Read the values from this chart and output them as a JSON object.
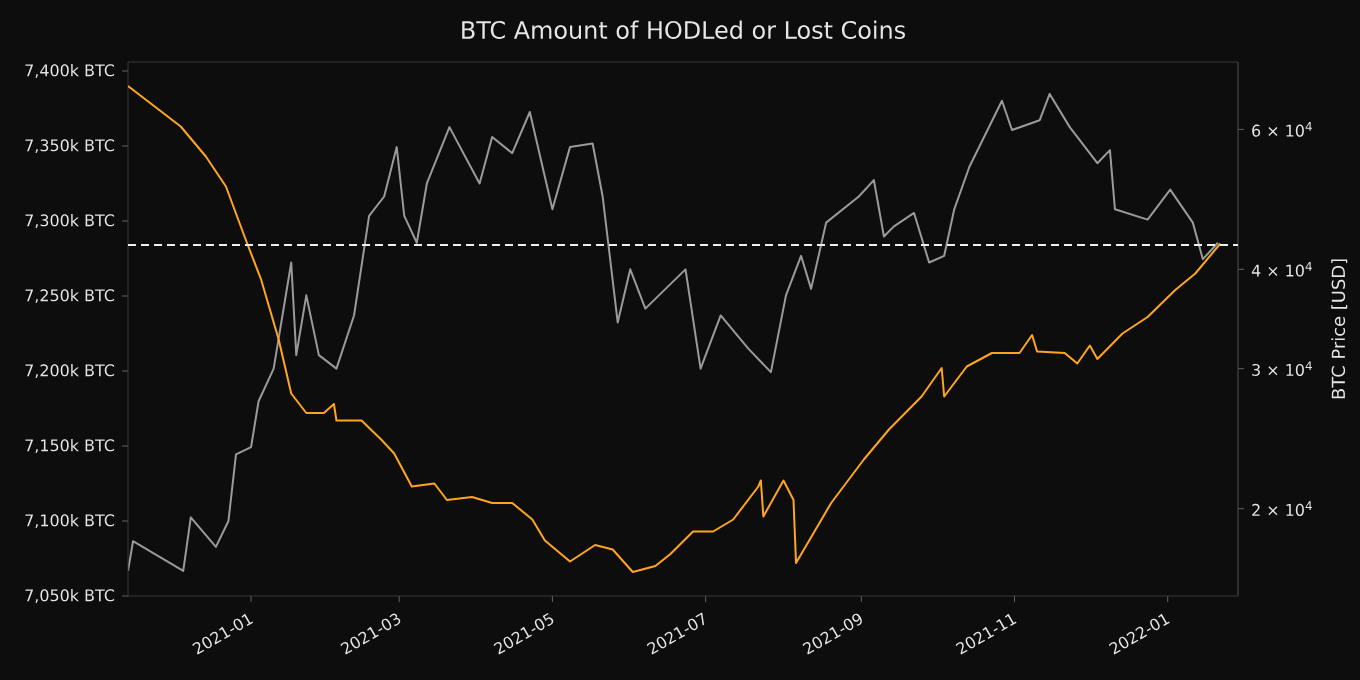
{
  "chart_data": {
    "type": "line",
    "title": "BTC Amount of HODLed or Lost Coins",
    "y2label": "BTC Price [USD]",
    "log": "y2",
    "xlim": [
      "2020-11-13",
      "2022-01-29"
    ],
    "xticks": [
      "2021-01",
      "2021-03",
      "2021-05",
      "2021-07",
      "2021-09",
      "2021-11",
      "2022-01"
    ],
    "ylim": [
      7050,
      7406
    ],
    "yticks": [
      {
        "value": 7050,
        "label": "7,050k BTC"
      },
      {
        "value": 7100,
        "label": "7,100k BTC"
      },
      {
        "value": 7150,
        "label": "7,150k BTC"
      },
      {
        "value": 7200,
        "label": "7,200k BTC"
      },
      {
        "value": 7250,
        "label": "7,250k BTC"
      },
      {
        "value": 7300,
        "label": "7,300k BTC"
      },
      {
        "value": 7350,
        "label": "7,350k BTC"
      },
      {
        "value": 7400,
        "label": "7,400k BTC"
      }
    ],
    "y2lim": [
      15530,
      72950
    ],
    "y2ticks": [
      {
        "value": 20000,
        "label": "2 × 10$^{4}$"
      },
      {
        "value": 30000,
        "label": "3 × 10$^{4}$"
      },
      {
        "value": 40000,
        "label": "4 × 10$^{4}$"
      },
      {
        "value": 60000,
        "label": "6 × 10$^{4}$"
      }
    ],
    "ref_lines": [
      {
        "axis": "y",
        "value": 7284,
        "color": "#eeeeee",
        "line_style": "dashed"
      }
    ],
    "series": [
      {
        "color": "#9a9a9a",
        "axis": "y2",
        "x": [
          "2020-11-13",
          "2020-11-15",
          "2020-12-05",
          "2020-12-08",
          "2020-12-18",
          "2020-12-23",
          "2020-12-26",
          "2021-01-01",
          "2021-01-04",
          "2021-01-10",
          "2021-01-17",
          "2021-01-19",
          "2021-01-23",
          "2021-01-28",
          "2021-02-04",
          "2021-02-11",
          "2021-02-17",
          "2021-02-23",
          "2021-02-28",
          "2021-03-03",
          "2021-03-08",
          "2021-03-12",
          "2021-03-21",
          "2021-04-02",
          "2021-04-07",
          "2021-04-15",
          "2021-04-22",
          "2021-05-01",
          "2021-05-08",
          "2021-05-17",
          "2021-05-21",
          "2021-05-27",
          "2021-06-01",
          "2021-06-07",
          "2021-06-23",
          "2021-06-29",
          "2021-07-07",
          "2021-07-18",
          "2021-07-27",
          "2021-08-02",
          "2021-08-08",
          "2021-08-12",
          "2021-08-18",
          "2021-08-31",
          "2021-09-06",
          "2021-09-10",
          "2021-09-14",
          "2021-09-22",
          "2021-09-28",
          "2021-10-04",
          "2021-10-08",
          "2021-10-14",
          "2021-10-27",
          "2021-10-31",
          "2021-11-11",
          "2021-11-15",
          "2021-11-23",
          "2021-12-04",
          "2021-12-09",
          "2021-12-11",
          "2021-12-24",
          "2022-01-02",
          "2022-01-11",
          "2022-01-15",
          "2022-01-21"
        ],
        "values": [
          16700,
          18200,
          16700,
          19500,
          17900,
          19300,
          23400,
          23900,
          27300,
          30000,
          40800,
          31200,
          37100,
          31200,
          30000,
          35000,
          46700,
          49400,
          57000,
          46700,
          43200,
          51300,
          60400,
          51300,
          58700,
          56000,
          63100,
          47600,
          57000,
          57600,
          49400,
          34300,
          40000,
          35700,
          40000,
          30000,
          35000,
          31800,
          29700,
          37100,
          41600,
          37800,
          45800,
          49400,
          51800,
          44000,
          45300,
          47100,
          40800,
          41600,
          47600,
          53800,
          65200,
          59900,
          61600,
          66500,
          60400,
          54400,
          56500,
          47600,
          46200,
          50400,
          45800,
          41200,
          43200
        ]
      },
      {
        "color": "#ffa51f",
        "x": [
          "2020-11-13",
          "2020-12-04",
          "2020-12-14",
          "2020-12-22",
          "2020-12-30",
          "2021-01-05",
          "2021-01-12",
          "2021-01-17",
          "2021-01-23",
          "2021-01-30",
          "2021-02-03",
          "2021-02-04",
          "2021-02-14",
          "2021-02-22",
          "2021-02-27",
          "2021-03-06",
          "2021-03-15",
          "2021-03-20",
          "2021-03-30",
          "2021-04-07",
          "2021-04-15",
          "2021-04-23",
          "2021-04-28",
          "2021-05-08",
          "2021-05-18",
          "2021-05-25",
          "2021-06-02",
          "2021-06-11",
          "2021-06-17",
          "2021-06-26",
          "2021-07-04",
          "2021-07-12",
          "2021-07-22",
          "2021-07-23",
          "2021-07-24",
          "2021-08-01",
          "2021-08-05",
          "2021-08-06",
          "2021-08-20",
          "2021-09-02",
          "2021-09-12",
          "2021-09-25",
          "2021-10-03",
          "2021-10-04",
          "2021-10-13",
          "2021-10-23",
          "2021-11-03",
          "2021-11-08",
          "2021-11-10",
          "2021-11-21",
          "2021-11-26",
          "2021-12-01",
          "2021-12-04",
          "2021-12-14",
          "2021-12-24",
          "2022-01-04",
          "2022-01-12",
          "2022-01-22"
        ],
        "values": [
          7390,
          7363,
          7343,
          7323,
          7287,
          7261,
          7221,
          7185,
          7172,
          7172,
          7178,
          7167,
          7167,
          7154,
          7145,
          7123,
          7125,
          7114,
          7116,
          7112,
          7112,
          7101,
          7087,
          7073,
          7084,
          7081,
          7066,
          7070,
          7078,
          7093,
          7093,
          7101,
          7123,
          7127,
          7103,
          7127,
          7114,
          7072,
          7112,
          7141,
          7161,
          7183,
          7202,
          7183,
          7203,
          7212,
          7212,
          7224,
          7213,
          7212,
          7205,
          7217,
          7208,
          7225,
          7236,
          7254,
          7265,
          7285
        ]
      }
    ]
  }
}
